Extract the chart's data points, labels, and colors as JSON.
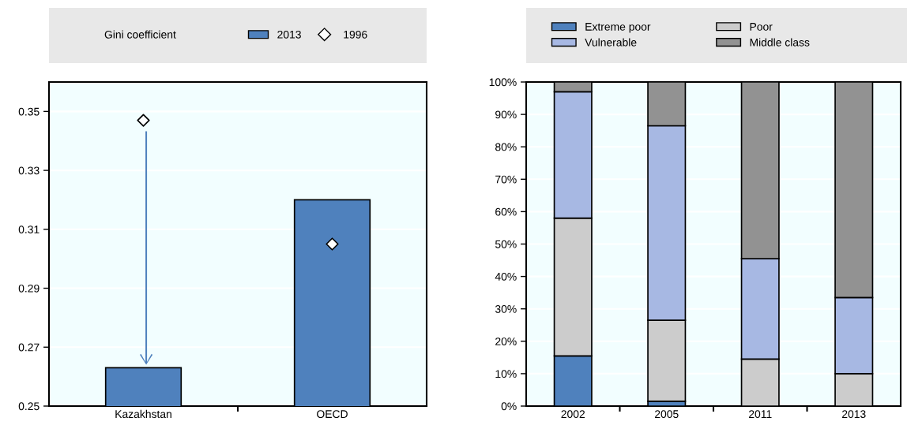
{
  "chart_data": [
    {
      "type": "bar",
      "legend_title": "Gini coefficient",
      "categories": [
        "Kazakhstan",
        "OECD"
      ],
      "series": [
        {
          "name": "2013",
          "type": "bar",
          "color": "#4f81bd",
          "values": [
            0.263,
            0.32
          ]
        },
        {
          "name": "1996",
          "type": "scatter",
          "color": "#ffffff",
          "marker": "diamond",
          "values": [
            0.347,
            0.305
          ]
        }
      ],
      "ylim": [
        0.25,
        0.36
      ],
      "yticks": [
        0.25,
        0.27,
        0.29,
        0.31,
        0.33,
        0.35
      ],
      "grid": "y",
      "legend": "top"
    },
    {
      "type": "bar",
      "stacked": true,
      "categories": [
        "2002",
        "2005",
        "2011",
        "2013"
      ],
      "series": [
        {
          "name": "Extreme poor",
          "color": "#4f81bd",
          "values": [
            15.5,
            1.5,
            null,
            0
          ]
        },
        {
          "name": "Poor",
          "color": "#cccccc",
          "values": [
            42.5,
            25,
            14.5,
            10
          ]
        },
        {
          "name": "Vulnerable",
          "color": "#a7b8e3",
          "values": [
            39,
            60,
            31,
            23.5
          ]
        },
        {
          "name": "Middle class",
          "color": "#929292",
          "values": [
            3,
            13.5,
            54.5,
            66.5
          ]
        }
      ],
      "ylim": [
        0,
        100
      ],
      "yticks": [
        {
          "value": 0,
          "label": "0%"
        },
        {
          "value": 10,
          "label": "10%"
        },
        {
          "value": 20,
          "label": "20%"
        },
        {
          "value": 30,
          "label": "30%"
        },
        {
          "value": 40,
          "label": "40%"
        },
        {
          "value": 50,
          "label": "50%"
        },
        {
          "value": 60,
          "label": "60%"
        },
        {
          "value": 70,
          "label": "70%"
        },
        {
          "value": 80,
          "label": "80%"
        },
        {
          "value": 90,
          "label": "90%"
        },
        {
          "value": 100,
          "label": "100%"
        }
      ],
      "grid": "y",
      "legend": "top"
    }
  ]
}
